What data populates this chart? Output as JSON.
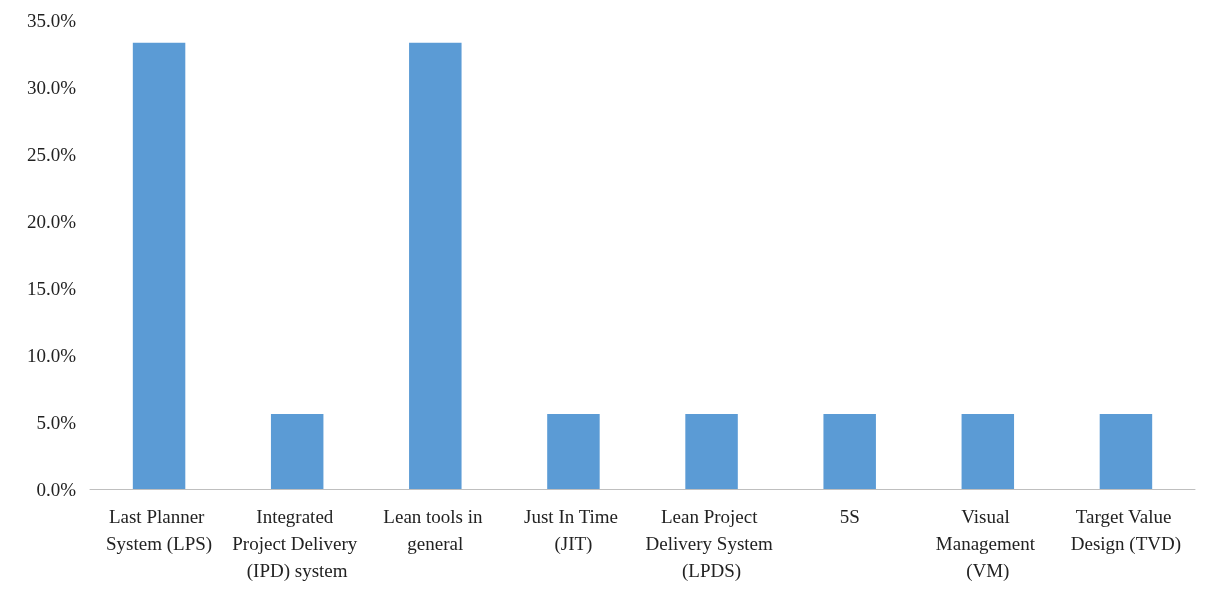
{
  "chart_data": {
    "type": "bar",
    "categories": [
      "Last Planner System (LPS)",
      "Integrated Project Delivery (IPD) system",
      "Lean tools in general",
      "Just In Time (JIT)",
      "Lean Project Delivery System (LPDS)",
      "5S",
      "Visual Management (VM)",
      "Target Value Design (TVD)"
    ],
    "values": [
      33.3,
      5.6,
      33.3,
      5.6,
      5.6,
      5.6,
      5.6,
      5.6
    ],
    "color": "#5b9bd5",
    "ylim": [
      0,
      35
    ],
    "yticks": [
      {
        "value": 0,
        "label": "0.0%"
      },
      {
        "value": 5,
        "label": "5.0%"
      },
      {
        "value": 10,
        "label": "10.0%"
      },
      {
        "value": 15,
        "label": "15.0%"
      },
      {
        "value": 20,
        "label": "20.0%"
      },
      {
        "value": 25,
        "label": "25.0%"
      },
      {
        "value": 30,
        "label": "30.0%"
      },
      {
        "value": 35,
        "label": "35.0%"
      }
    ],
    "grid": false
  }
}
